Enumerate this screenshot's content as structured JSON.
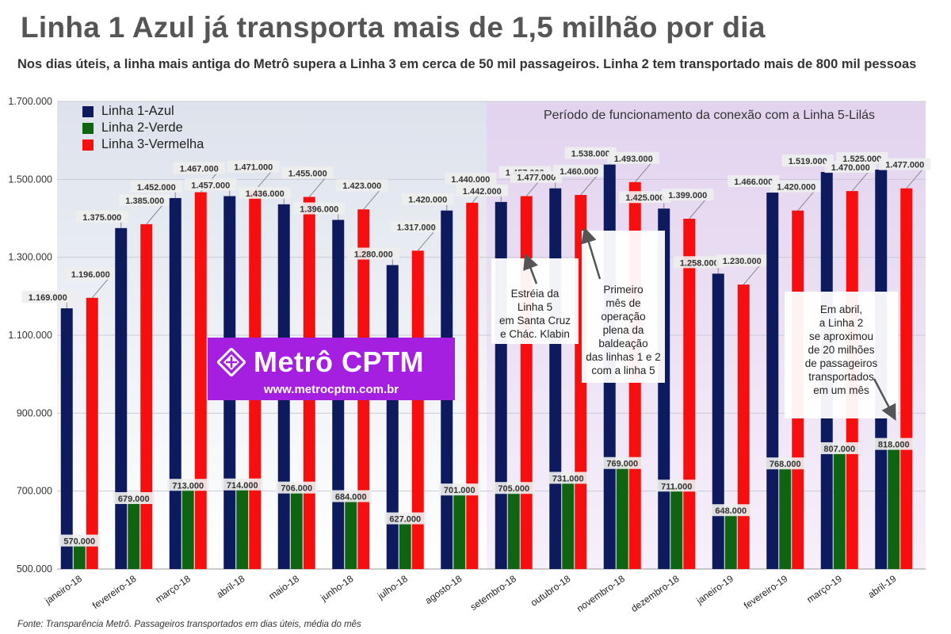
{
  "title": "Linha 1 Azul já transporta mais de 1,5 milhão por dia",
  "subtitle": "Nos dias úteis, a linha mais antiga do Metrô supera a Linha 3 em cerca de 50 mil passageiros. Linha 2 tem transportado mais de 800 mil pessoas",
  "source": "Fonte: Transparência Metrô. Passageiros transportados em dias úteis, média do mês",
  "region_label": "Período de funcionamento da conexão com a Linha 5-Lilás",
  "logo": {
    "name": "Metrô CPTM",
    "url": "www.metrocptm.com.br"
  },
  "callouts": {
    "linha5": [
      "Estréia da",
      "Linha 5",
      "em Santa Cruz",
      "e Chác. Klabin"
    ],
    "baldeacao": [
      "Primeiro",
      "mês de",
      "operação",
      "plena da",
      "baldeação",
      "das linhas 1 e 2",
      "com a linha 5"
    ],
    "abril": [
      "Em abril,",
      "a Linha 2",
      "se aproximou",
      "de 20 milhões",
      "de passageiros",
      "transportados",
      "em um mês"
    ]
  },
  "colors": {
    "linha1": "#0d1b5e",
    "linha2": "#0e6411",
    "linha3": "#f70f0f",
    "region": "#e2d3ee",
    "logo": "#a51fe0"
  },
  "chart_data": {
    "type": "bar",
    "categories": [
      "janeiro-18",
      "fevereiro-18",
      "março-18",
      "abril-18",
      "maio-18",
      "junho-18",
      "julho-18",
      "agosto-18",
      "setembro-18",
      "outubro-18",
      "novembro-18",
      "dezembro-18",
      "janeiro-19",
      "fevereiro-19",
      "março-19",
      "abril-19"
    ],
    "series": [
      {
        "name": "Linha 1-Azul",
        "color": "#0d1b5e",
        "values": [
          1169000,
          1375000,
          1452000,
          1457000,
          1436000,
          1396000,
          1280000,
          1420000,
          1442000,
          1477000,
          1538000,
          1425000,
          1258000,
          1466000,
          1519000,
          1525000
        ]
      },
      {
        "name": "Linha 2-Verde",
        "color": "#0e6411",
        "values": [
          570000,
          679000,
          713000,
          714000,
          706000,
          684000,
          627000,
          701000,
          705000,
          731000,
          769000,
          711000,
          648000,
          768000,
          807000,
          818000
        ]
      },
      {
        "name": "Linha 3-Vermelha",
        "color": "#f70f0f",
        "values": [
          1196000,
          1385000,
          1467000,
          1471000,
          1455000,
          1423000,
          1317000,
          1440000,
          1457000,
          1460000,
          1493000,
          1399000,
          1230000,
          1420000,
          1470000,
          1477000
        ]
      }
    ],
    "data_labels": {
      "linha1": [
        "1.169.000",
        "1.375.000",
        "1.452.000",
        "1.457.000",
        "1.436.000",
        "1.396.000",
        "1.280.000",
        "1.420.000",
        "1.442.000",
        "1.477.000",
        "1.538.000",
        "1.425.000",
        "1.258.000",
        "1.466.000",
        "1.519.000",
        "1.525.000"
      ],
      "linha2": [
        "570.000",
        "679.000",
        "713.000",
        "714.000",
        "706.000",
        "684.000",
        "627.000",
        "701.000",
        "705.000",
        "731.000",
        "769.000",
        "711.000",
        "648.000",
        "768.000",
        "807.000",
        "818.000"
      ],
      "linha3": [
        "1.196.000",
        "1.385.000",
        "1.467.000",
        "1.471.000",
        "1.455.000",
        "1.423.000",
        "1.317.000",
        "1.440.000",
        "1.457.000",
        "1.460.000",
        "1.493.000",
        "1.399.000",
        "1.230.000",
        "1.420.000",
        "1.470.000",
        "1.477.000"
      ]
    },
    "yticks": [
      500000,
      700000,
      900000,
      1100000,
      1300000,
      1500000,
      1700000
    ],
    "ytick_labels": [
      "500.000",
      "700.000",
      "900.000",
      "1.100.000",
      "1.300.000",
      "1.500.000",
      "1.700.000"
    ],
    "ylim": [
      500000,
      1700000
    ],
    "highlight_range": [
      "setembro-18",
      "abril-19"
    ],
    "legend_position": "top-left",
    "grid": true,
    "xlabel": "",
    "ylabel": ""
  }
}
